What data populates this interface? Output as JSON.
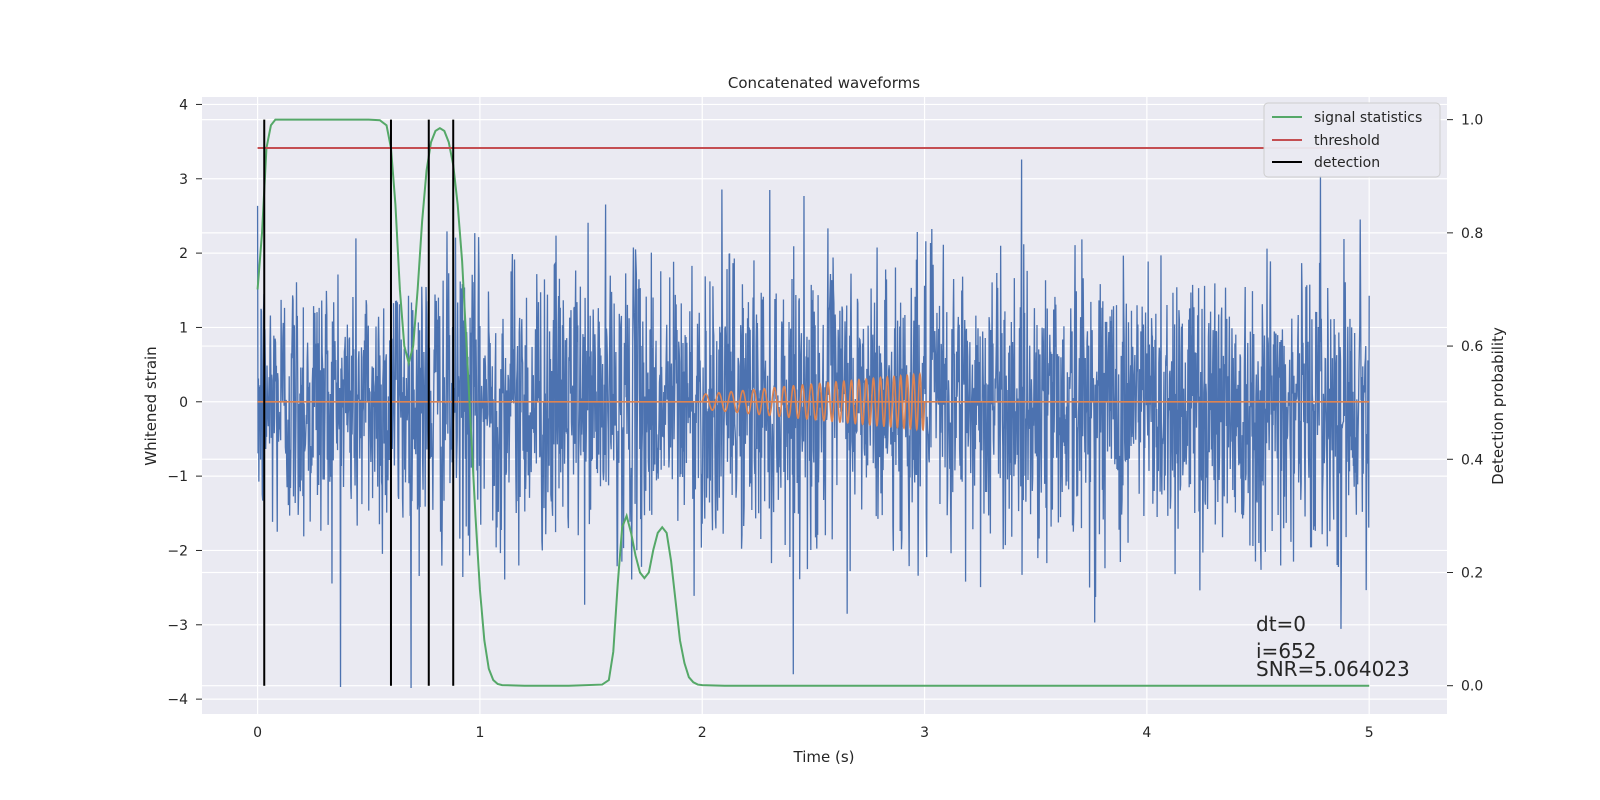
{
  "chart_data": {
    "type": "line",
    "title": "Concatenated waveforms",
    "xlabel": "Time (s)",
    "ylabel": "Whitened strain",
    "y2label": "Detection probability",
    "xlim": [
      -0.25,
      5.35
    ],
    "ylim": [
      -4.2,
      4.1
    ],
    "y2lim": [
      -0.05,
      1.04
    ],
    "xticks": [
      0,
      1,
      2,
      3,
      4,
      5
    ],
    "yticks": [
      -4,
      -3,
      -2,
      -1,
      0,
      1,
      2,
      3,
      4
    ],
    "y2ticks": [
      0.0,
      0.2,
      0.4,
      0.6,
      0.8,
      1.0
    ],
    "grid": true,
    "legend_position": "top-right",
    "legend": [
      "signal statistics",
      "threshold",
      "detection"
    ],
    "series": [
      {
        "name": "signal statistics",
        "axis": "right",
        "color": "#55a868",
        "x": [
          0.0,
          0.02,
          0.04,
          0.06,
          0.08,
          0.1,
          0.15,
          0.2,
          0.3,
          0.4,
          0.5,
          0.55,
          0.58,
          0.6,
          0.62,
          0.64,
          0.66,
          0.68,
          0.7,
          0.72,
          0.74,
          0.76,
          0.78,
          0.8,
          0.82,
          0.84,
          0.86,
          0.88,
          0.9,
          0.92,
          0.94,
          0.96,
          0.98,
          1.0,
          1.02,
          1.04,
          1.06,
          1.08,
          1.1,
          1.2,
          1.4,
          1.55,
          1.58,
          1.6,
          1.62,
          1.64,
          1.66,
          1.68,
          1.7,
          1.72,
          1.74,
          1.76,
          1.78,
          1.8,
          1.82,
          1.84,
          1.86,
          1.88,
          1.9,
          1.92,
          1.94,
          1.96,
          1.98,
          2.0,
          2.1,
          2.3,
          2.6,
          3.0,
          4.0,
          5.0
        ],
        "values": [
          0.7,
          0.8,
          0.95,
          0.99,
          1.0,
          1.0,
          1.0,
          1.0,
          1.0,
          1.0,
          1.0,
          0.999,
          0.99,
          0.95,
          0.85,
          0.7,
          0.6,
          0.57,
          0.6,
          0.7,
          0.82,
          0.91,
          0.96,
          0.98,
          0.985,
          0.98,
          0.96,
          0.92,
          0.85,
          0.75,
          0.6,
          0.45,
          0.3,
          0.17,
          0.08,
          0.03,
          0.01,
          0.003,
          0.001,
          0.0,
          0.0,
          0.002,
          0.01,
          0.06,
          0.18,
          0.28,
          0.3,
          0.27,
          0.23,
          0.2,
          0.19,
          0.2,
          0.24,
          0.27,
          0.28,
          0.27,
          0.22,
          0.15,
          0.08,
          0.04,
          0.015,
          0.006,
          0.002,
          0.001,
          0.0,
          0.0,
          0.0,
          0.0,
          0.0,
          0.0
        ]
      },
      {
        "name": "threshold",
        "axis": "right",
        "color": "#c44e52",
        "x": [
          0,
          5
        ],
        "values": [
          0.95,
          0.95
        ]
      },
      {
        "name": "detection",
        "axis": "right",
        "color": "#000000",
        "x": [
          0.03,
          0.6,
          0.77,
          0.88
        ],
        "ymin": [
          0.0,
          0.0,
          0.0,
          0.0
        ],
        "ymax": [
          1.0,
          1.0,
          1.0,
          1.0
        ]
      }
    ],
    "noise_series": {
      "axis": "left",
      "color": "#4c72b0",
      "x_range": [
        0,
        5
      ],
      "approx_spread": 0.95,
      "approx_extremes": [
        -3.85,
        3.7
      ]
    },
    "injected_waveform": {
      "axis": "left",
      "color": "#dd8452",
      "x_range": [
        2,
        3
      ],
      "amplitude_start": 0.1,
      "amplitude_end": 0.38,
      "baseline_range": [
        0,
        5
      ],
      "baseline_value": 0
    },
    "annotations": [
      "dt=0",
      "i=652",
      "SNR=5.064023"
    ]
  }
}
